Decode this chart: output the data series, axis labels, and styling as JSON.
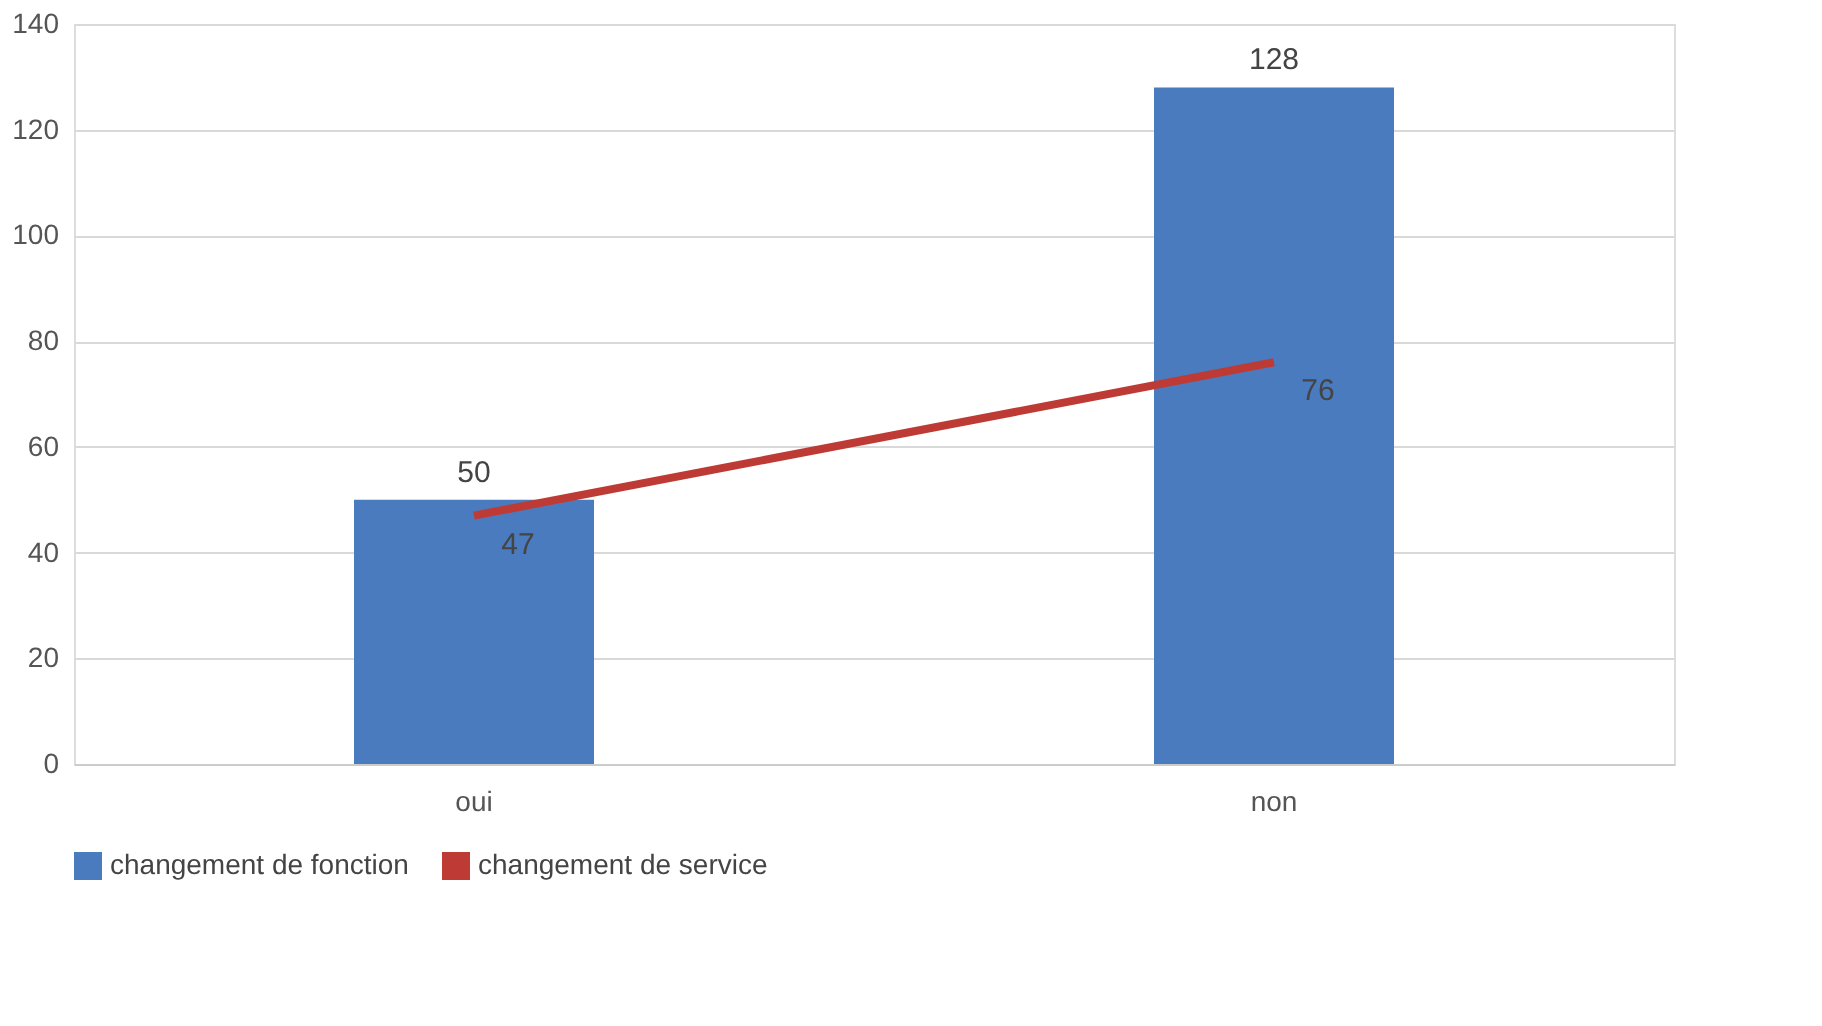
{
  "chart_data": {
    "type": "bar",
    "categories": [
      "oui",
      "non"
    ],
    "series": [
      {
        "name": "changement de fonction",
        "color": "#4a7bbf",
        "values": [
          50,
          128
        ]
      },
      {
        "name": "changement de service",
        "type": "line",
        "color": "#be3a34",
        "values": [
          47,
          76
        ]
      }
    ],
    "ylim": [
      0,
      140
    ],
    "yticks": [
      0,
      20,
      40,
      60,
      80,
      100,
      120,
      140
    ],
    "grid": "y",
    "legend": "bottom",
    "data_labels": true,
    "marker": "none"
  }
}
